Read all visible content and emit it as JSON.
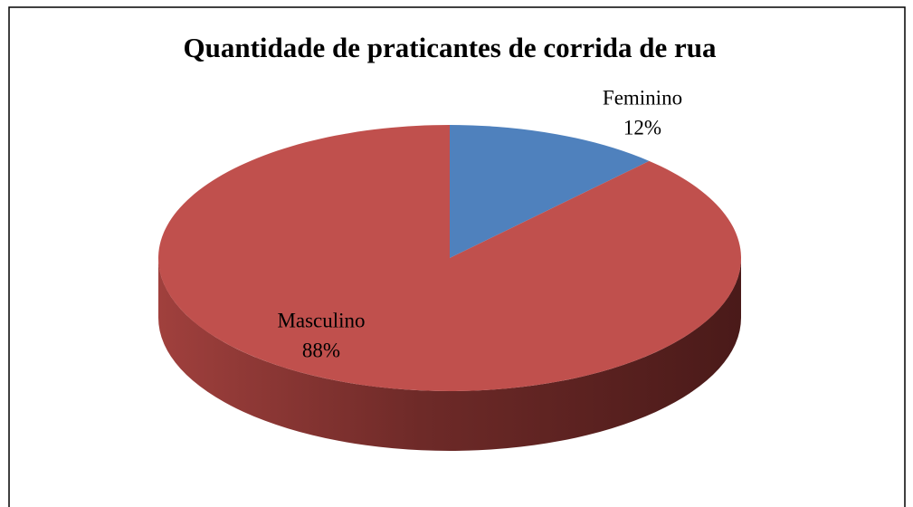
{
  "chart_data": {
    "type": "pie3d",
    "title": "Quantidade de praticantes de corrida de rua",
    "categories": [
      "Feminino",
      "Masculino"
    ],
    "values": [
      12,
      88
    ],
    "value_labels": [
      "12%",
      "88%"
    ],
    "colors": [
      "#4f81bd",
      "#c0504d"
    ]
  }
}
